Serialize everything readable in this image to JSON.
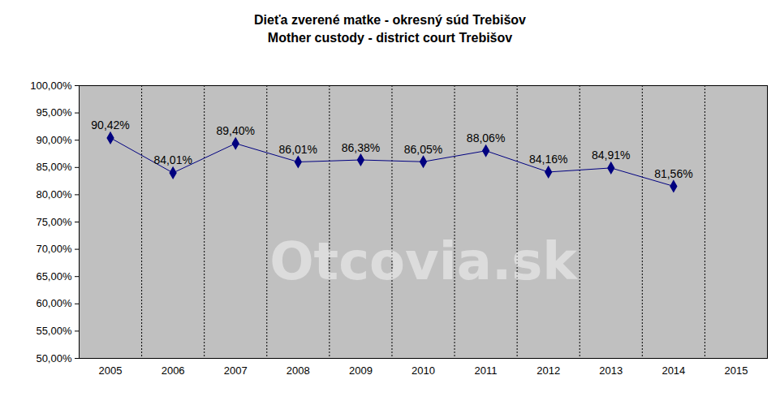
{
  "chart_data": {
    "type": "line",
    "title": "Dieťa zverené matke - okresný súd Trebišov",
    "subtitle": "Mother custody - district court Trebišov",
    "categories": [
      "2005",
      "2006",
      "2007",
      "2008",
      "2009",
      "2010",
      "2011",
      "2012",
      "2013",
      "2014",
      "2015"
    ],
    "series": [
      {
        "name": "Mother custody",
        "color": "#000080",
        "marker": "diamond",
        "values": [
          90.42,
          84.01,
          89.4,
          86.01,
          86.38,
          86.05,
          88.06,
          84.16,
          84.91,
          81.56,
          null
        ],
        "value_labels": [
          "90,42%",
          "84,01%",
          "89,40%",
          "86,01%",
          "86,38%",
          "86,05%",
          "88,06%",
          "84,16%",
          "84,91%",
          "81,56%",
          null
        ]
      }
    ],
    "data_labels": true,
    "ylim": [
      50,
      100
    ],
    "yticks": [
      {
        "value": 50,
        "label": "50,00%"
      },
      {
        "value": 55,
        "label": "55,00%"
      },
      {
        "value": 60,
        "label": "60,00%"
      },
      {
        "value": 65,
        "label": "65,00%"
      },
      {
        "value": 70,
        "label": "70,00%"
      },
      {
        "value": 75,
        "label": "75,00%"
      },
      {
        "value": 80,
        "label": "80,00%"
      },
      {
        "value": 85,
        "label": "85,00%"
      },
      {
        "value": 90,
        "label": "90,00%"
      },
      {
        "value": 95,
        "label": "95,00%"
      },
      {
        "value": 100,
        "label": "100,00%"
      }
    ],
    "annotations": [
      {
        "text": "Otcovia.sk"
      }
    ]
  }
}
